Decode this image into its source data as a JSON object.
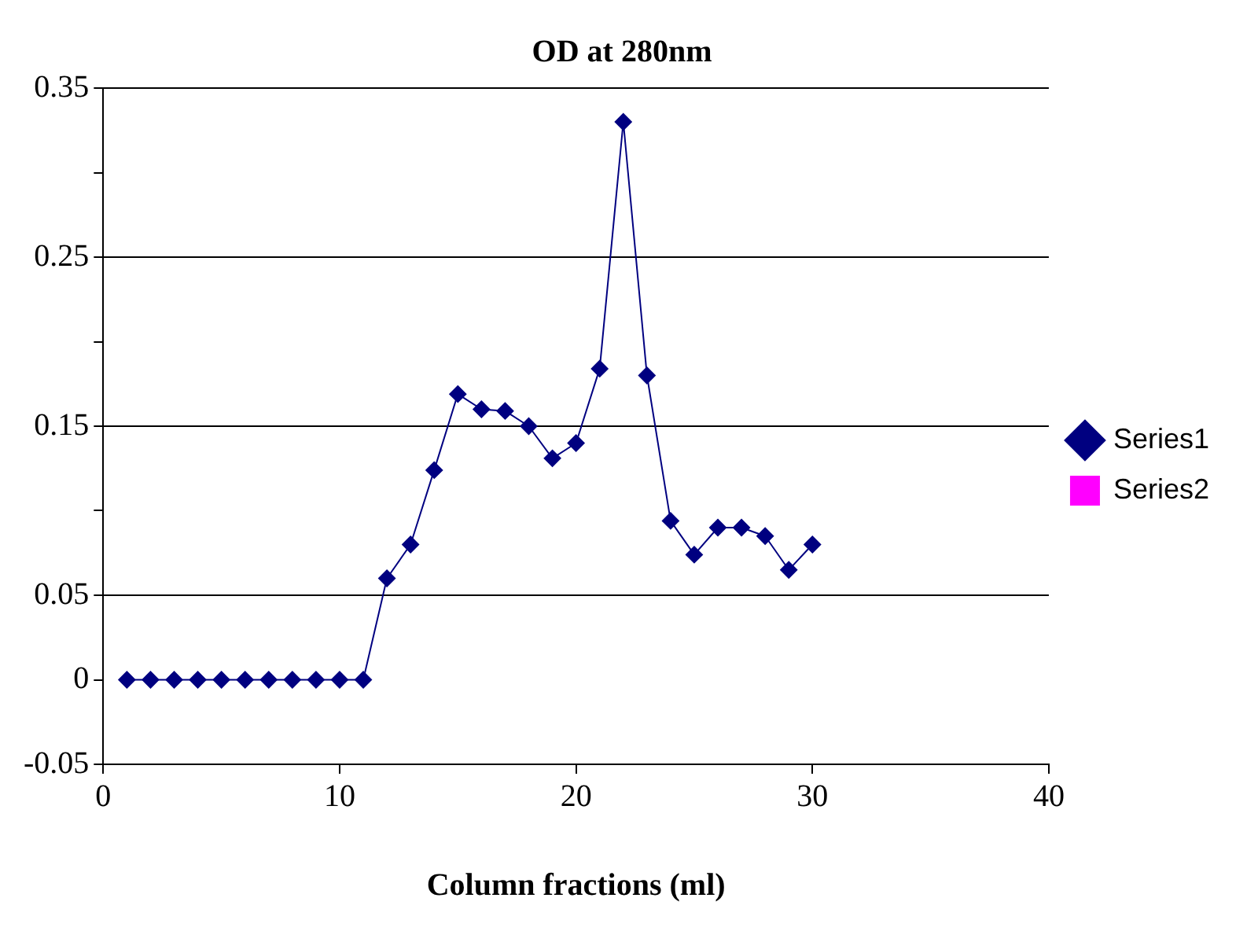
{
  "chart_data": {
    "type": "line",
    "title": "OD at 280nm",
    "xlabel": "Column fractions (ml)",
    "x": [
      1,
      2,
      3,
      4,
      5,
      6,
      7,
      8,
      9,
      10,
      11,
      12,
      13,
      14,
      15,
      16,
      17,
      18,
      19,
      20,
      21,
      22,
      23,
      24,
      25,
      26,
      27,
      28,
      29,
      30
    ],
    "series": [
      {
        "name": "Series1",
        "color": "#000080",
        "marker": "diamond",
        "values": [
          0,
          0,
          0,
          0,
          0,
          0,
          0,
          0,
          0,
          0,
          0,
          0.06,
          0.08,
          0.124,
          0.169,
          0.16,
          0.159,
          0.15,
          0.131,
          0.14,
          0.184,
          0.33,
          0.18,
          0.094,
          0.074,
          0.09,
          0.09,
          0.085,
          0.065,
          0.08
        ]
      },
      {
        "name": "Series2",
        "color": "#ff00ff",
        "marker": "square",
        "values": [
          null,
          null,
          null,
          null,
          null,
          null,
          null,
          null,
          null,
          null,
          null,
          null,
          null,
          null,
          null,
          null,
          null,
          null,
          null,
          null,
          null,
          null,
          null,
          null,
          null,
          null,
          null,
          null,
          null,
          null
        ]
      }
    ],
    "xlim": [
      0,
      40
    ],
    "xticks": [
      0,
      10,
      20,
      30,
      40
    ],
    "ylim": [
      -0.05,
      0.35
    ],
    "yticks": [
      -0.05,
      0,
      0.05,
      {
        "value": 0.1,
        "label": null
      },
      0.15,
      {
        "value": 0.2,
        "label": null
      },
      0.25,
      {
        "value": 0.3,
        "label": null
      },
      0.35
    ],
    "grid": "y",
    "legend": "right",
    "line_style": "solid"
  }
}
